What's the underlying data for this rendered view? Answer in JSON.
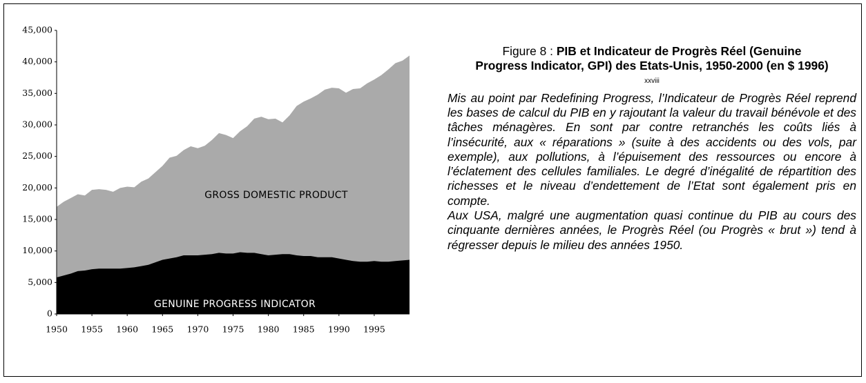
{
  "chart_data": {
    "type": "area",
    "x": [
      1950,
      1951,
      1952,
      1953,
      1954,
      1955,
      1956,
      1957,
      1958,
      1959,
      1960,
      1961,
      1962,
      1963,
      1964,
      1965,
      1966,
      1967,
      1968,
      1969,
      1970,
      1971,
      1972,
      1973,
      1974,
      1975,
      1976,
      1977,
      1978,
      1979,
      1980,
      1981,
      1982,
      1983,
      1984,
      1985,
      1986,
      1987,
      1988,
      1989,
      1990,
      1991,
      1992,
      1993,
      1994,
      1995,
      1996,
      1997,
      1998,
      1999,
      2000
    ],
    "series": [
      {
        "name": "GROSS DOMESTIC PRODUCT",
        "color": "#aaaaaa",
        "values": [
          17000,
          17800,
          18400,
          19000,
          18800,
          19700,
          19800,
          19700,
          19400,
          20000,
          20200,
          20100,
          21000,
          21500,
          22500,
          23500,
          24800,
          25100,
          26000,
          26600,
          26300,
          26700,
          27600,
          28700,
          28400,
          27900,
          29000,
          29800,
          31000,
          31300,
          30900,
          31000,
          30400,
          31500,
          33000,
          33700,
          34200,
          34800,
          35600,
          35900,
          35800,
          35100,
          35700,
          35800,
          36600,
          37200,
          37900,
          38800,
          39800,
          40200,
          41000
        ]
      },
      {
        "name": "GENUINE PROGRESS INDICATOR",
        "color": "#000000",
        "values": [
          5800,
          6100,
          6400,
          6800,
          6900,
          7100,
          7200,
          7200,
          7200,
          7200,
          7300,
          7400,
          7600,
          7800,
          8200,
          8600,
          8800,
          9000,
          9300,
          9300,
          9300,
          9400,
          9500,
          9700,
          9600,
          9600,
          9800,
          9700,
          9700,
          9500,
          9300,
          9400,
          9500,
          9500,
          9300,
          9200,
          9200,
          9000,
          9000,
          9000,
          8800,
          8600,
          8400,
          8300,
          8300,
          8400,
          8300,
          8300,
          8400,
          8500,
          8600
        ]
      }
    ],
    "xlim": [
      1950,
      2000
    ],
    "xticks": [
      1950,
      1955,
      1960,
      1965,
      1970,
      1975,
      1980,
      1985,
      1990,
      1995
    ],
    "ylim": [
      0,
      45000
    ],
    "yticks": [
      0,
      {
        "value": 5000,
        "label": "5,000"
      },
      {
        "value": 10000,
        "label": "10,000"
      },
      {
        "value": 15000,
        "label": "15,000"
      },
      {
        "value": 20000,
        "label": "20,000"
      },
      {
        "value": 25000,
        "label": "25,000"
      },
      {
        "value": 30000,
        "label": "30,000"
      },
      {
        "value": 35000,
        "label": "35,000"
      },
      {
        "value": 40000,
        "label": "40,000"
      },
      {
        "value": 45000,
        "label": "45,000"
      }
    ]
  },
  "caption": {
    "figure": "Figure 8 : ",
    "title": "PIB et Indicateur de Progrès Réel (Genuine Progress Indicator, GPI) des Etats-Unis, 1950-2000 (en $ 1996)",
    "note": "xxviii",
    "paragraphs": [
      "Mis au point par Redefining Progress, l’Indicateur de Progrès Réel reprend les bases de calcul du PIB en y rajoutant la valeur du travail bénévole et des tâches ménagères. En sont par contre retranchés les coûts liés à l’insécurité, aux « réparations » (suite à des accidents ou des vols, par exemple), aux pollutions, à l’épuisement des ressources ou encore à l’éclatement des cellules familiales. Le degré d’inégalité de répartition des richesses et le niveau d’endettement de l’Etat sont également  pris en compte.",
      "Aux USA, malgré une augmentation quasi continue du PIB au cours des cinquante dernières années, le Progrès Réel (ou Progrès « brut ») tend à régresser depuis le milieu des années 1950."
    ]
  }
}
